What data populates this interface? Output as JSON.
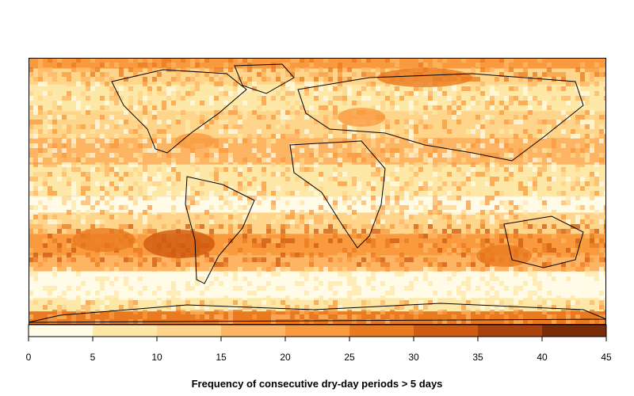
{
  "map": {
    "title": "Frequency of consecutive dry-day periods > 5 days",
    "colorbar": {
      "min": 0,
      "max": 45,
      "ticks": [
        "0",
        "5",
        "10",
        "15",
        "20",
        "25",
        "30",
        "35",
        "40",
        "45"
      ],
      "colors": [
        "#fffbe6",
        "#fee8a8",
        "#fed58a",
        "#fdb563",
        "#f99a3e",
        "#ea7a20",
        "#cf5a12",
        "#a9420c",
        "#7a2b08"
      ]
    },
    "land_outline_color": "#000000"
  }
}
